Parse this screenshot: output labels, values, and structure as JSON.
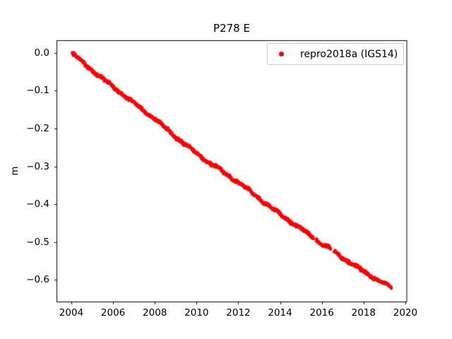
{
  "chart_data": {
    "type": "scatter",
    "title": "P278 E",
    "xlabel": "",
    "ylabel": "m",
    "grid": false,
    "legend_position": "upper right",
    "marker_color": "#ff0000",
    "xlim": [
      2003.29,
      2020.07
    ],
    "ylim": [
      -0.6584,
      0.0325
    ],
    "x_ticks": [
      2004,
      2006,
      2008,
      2010,
      2012,
      2014,
      2016,
      2018,
      2020
    ],
    "x_tick_labels": [
      "2004",
      "2006",
      "2008",
      "2010",
      "2012",
      "2014",
      "2016",
      "2018",
      "2020"
    ],
    "y_ticks": [
      0.0,
      -0.1,
      -0.2,
      -0.3,
      -0.4,
      -0.5,
      -0.6
    ],
    "y_tick_labels": [
      "0.0",
      "−0.1",
      "−0.2",
      "−0.3",
      "−0.4",
      "−0.5",
      "−0.6"
    ],
    "series": [
      {
        "name": "repro2018a (IGS14)",
        "color": "#ff0000",
        "marker": "dot",
        "trend": {
          "x_start": 2004.04,
          "x_end": 2019.33,
          "y_start": 0.0,
          "y_end": -0.621,
          "slope_m_per_yr": -0.0406
        },
        "gaps": [
          [
            2015.58,
            2015.72
          ],
          [
            2016.42,
            2016.6
          ]
        ],
        "sampling_interval_yr": 0.008,
        "scatter_sigma_m": 0.0018,
        "anchors": [
          [
            2004.04,
            -0.001
          ],
          [
            2005.0,
            -0.046
          ],
          [
            2006.0,
            -0.09
          ],
          [
            2007.0,
            -0.133
          ],
          [
            2008.0,
            -0.175
          ],
          [
            2009.0,
            -0.222
          ],
          [
            2010.0,
            -0.266
          ],
          [
            2011.0,
            -0.305
          ],
          [
            2012.0,
            -0.342
          ],
          [
            2013.0,
            -0.385
          ],
          [
            2014.0,
            -0.427
          ],
          [
            2015.0,
            -0.465
          ],
          [
            2015.58,
            -0.488
          ],
          [
            2015.72,
            -0.494
          ],
          [
            2016.0,
            -0.505
          ],
          [
            2016.42,
            -0.52
          ],
          [
            2016.6,
            -0.527
          ],
          [
            2017.0,
            -0.542
          ],
          [
            2018.0,
            -0.578
          ],
          [
            2019.0,
            -0.61
          ],
          [
            2019.33,
            -0.621
          ]
        ]
      }
    ]
  }
}
